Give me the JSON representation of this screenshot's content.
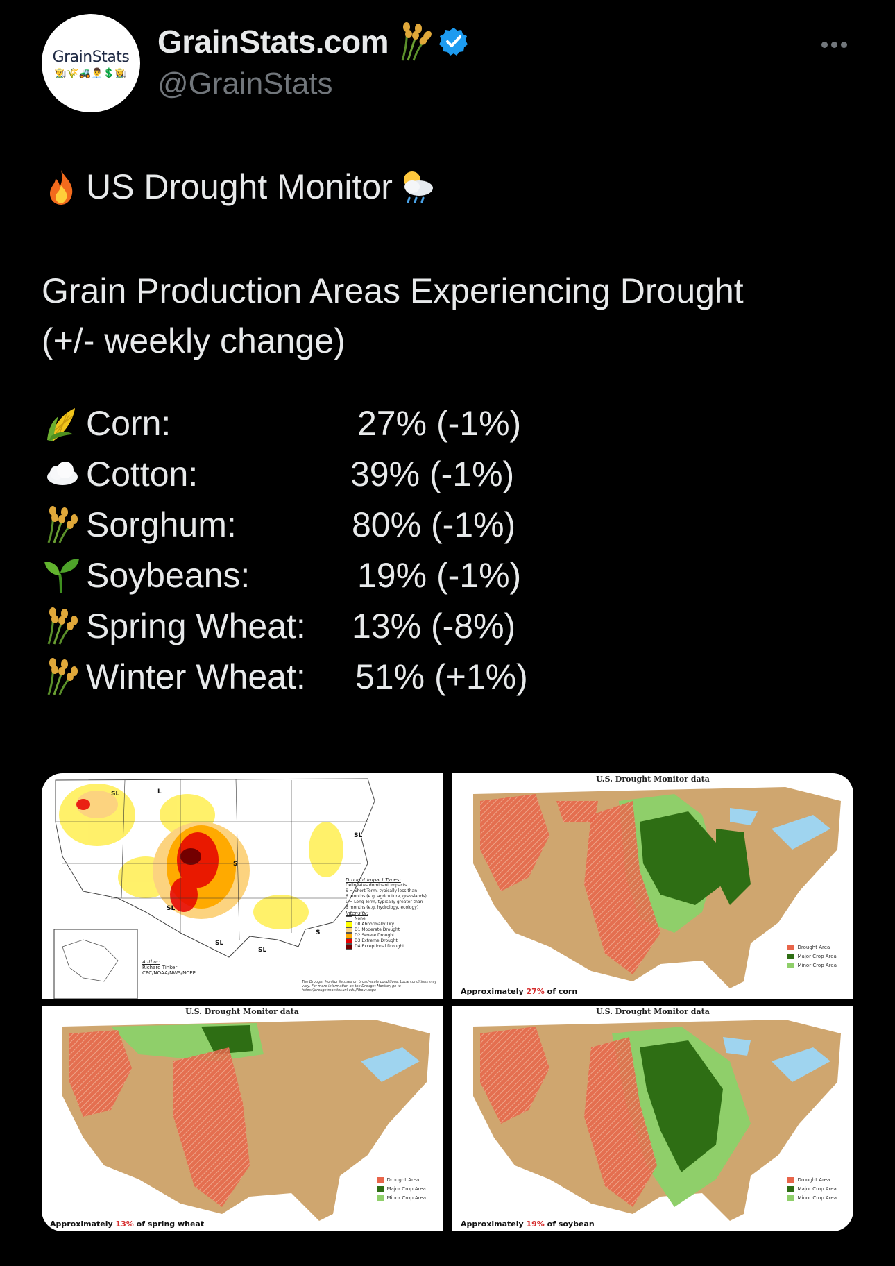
{
  "account": {
    "display_name": "GrainStats.com",
    "handle": "@GrainStats",
    "avatar_text": "GrainStats",
    "avatar_emoji": "👨‍🌾🌾🚜👨‍💼💲👩‍🌾",
    "name_icon": "sheaf-of-rice-icon",
    "verified": true
  },
  "post": {
    "title": "US Drought Monitor",
    "title_lead_icon": "fire-icon",
    "title_trail_icon": "sun-behind-rain-cloud-icon",
    "subtitle_line1": "Grain Production Areas Experiencing Drought",
    "subtitle_line2": "(+/- weekly change)",
    "crops": [
      {
        "icon": "corn-icon",
        "name": "Corn:",
        "value": "27% (-1%)"
      },
      {
        "icon": "cloud-icon",
        "name": "Cotton:",
        "value": "39% (-1%)"
      },
      {
        "icon": "sheaf-of-rice-icon",
        "name": "Sorghum:",
        "value": "80% (-1%)"
      },
      {
        "icon": "seedling-icon",
        "name": "Soybeans:",
        "value": "19% (-1%)"
      },
      {
        "icon": "sheaf-of-rice-icon",
        "name": "Spring Wheat:",
        "value": "13% (-8%)"
      },
      {
        "icon": "sheaf-of-rice-icon",
        "name": "Winter Wheat:",
        "value": "51% (+1%)"
      }
    ]
  },
  "media": {
    "panel1": {
      "impact_heading": "Drought Impact Types:",
      "impact_lines": [
        "Delineates dominant impacts",
        "S = Short-Term, typically less than",
        "6 months (e.g. agriculture, grasslands)",
        "L = Long-Term, typically greater than",
        "6 months (e.g. hydrology, ecology)"
      ],
      "intensity_heading": "Intensity:",
      "intensity": [
        {
          "label": "None",
          "color": "#ffffff"
        },
        {
          "label": "D0 Abnormally Dry",
          "color": "#ffff00"
        },
        {
          "label": "D1 Moderate Drought",
          "color": "#fcd37f"
        },
        {
          "label": "D2 Severe Drought",
          "color": "#ffaa00"
        },
        {
          "label": "D3 Extreme Drought",
          "color": "#e60000"
        },
        {
          "label": "D4 Exceptional Drought",
          "color": "#730000"
        }
      ],
      "author_heading": "Author:",
      "author_name": "Richard Tinker",
      "author_org": "CPC/NOAA/NWS/NCEP",
      "note": "The Drought Monitor focuses on broad-scale conditions. Local conditions may vary. For more information on the Drought Monitor, go to https://droughtmonitor.unl.edu/About.aspx",
      "map_labels": [
        "SL",
        "L",
        "SL",
        "SL",
        "SL",
        "S",
        "SL",
        "S"
      ]
    },
    "crop_panels_title": "U.S. Drought Monitor data",
    "crop_legend": [
      {
        "label": "Drought Area",
        "color": "#e8654a"
      },
      {
        "label": "Major Crop Area",
        "color": "#2e6e14"
      },
      {
        "label": "Minor Crop Area",
        "color": "#8fcf6a"
      }
    ],
    "captions": [
      {
        "prefix": "Approximately ",
        "pct": "27%",
        "suffix": " of corn"
      },
      {
        "prefix": "Approximately ",
        "pct": "13%",
        "suffix": " of spring wheat"
      },
      {
        "prefix": "Approximately ",
        "pct": "19%",
        "suffix": " of soybean"
      }
    ],
    "colors": {
      "land": "#cfa66f",
      "drought": "#e8654a",
      "major": "#2e6e14",
      "minor": "#8fcf6a",
      "water": "#9fd4ef"
    }
  },
  "colors": {
    "background": "#000000",
    "text": "#e7e9ea",
    "muted": "#71767b",
    "verified": "#1d9bf0"
  }
}
